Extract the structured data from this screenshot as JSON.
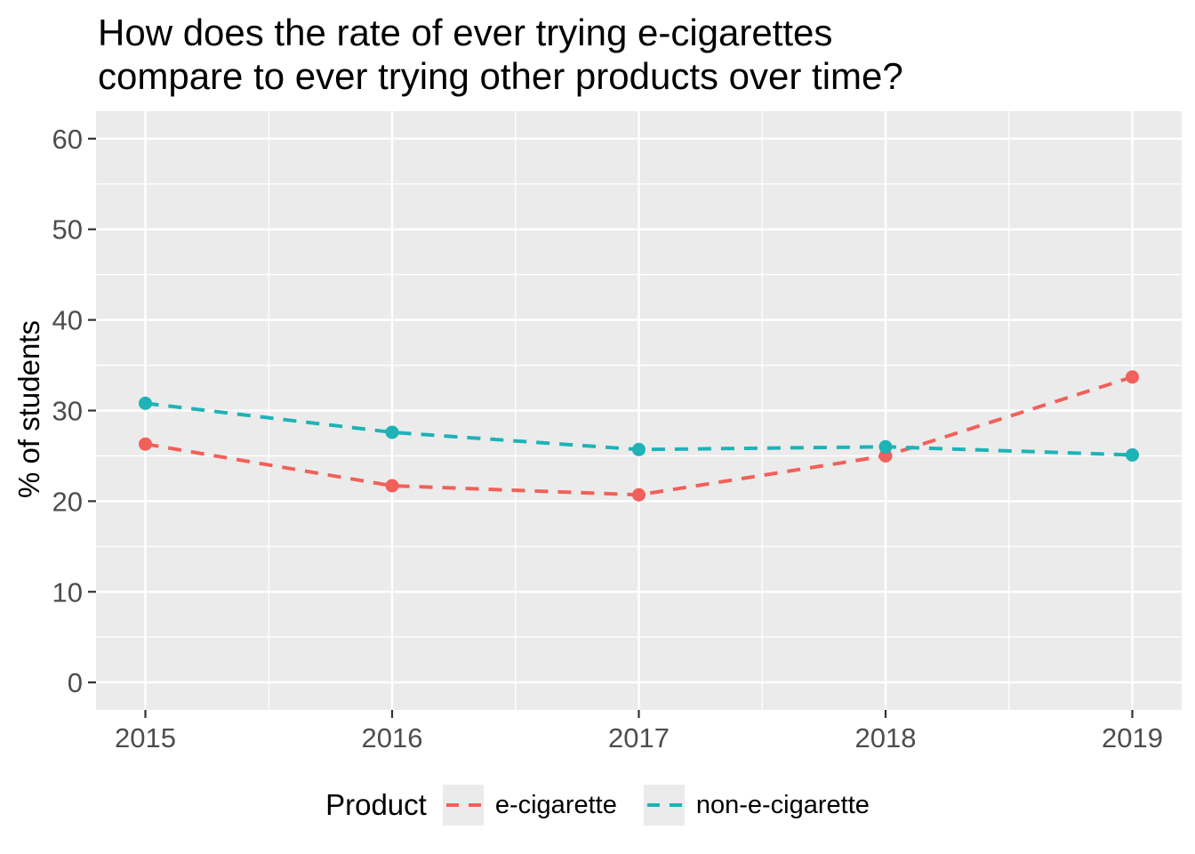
{
  "figure": {
    "title_lines": [
      "How does the rate of ever trying e-cigarettes",
      "compare to ever trying other products over time?"
    ]
  },
  "y_axis": {
    "title": "% of students",
    "tick_labels": [
      "0",
      "10",
      "20",
      "30",
      "40",
      "50",
      "60"
    ]
  },
  "x_axis": {
    "tick_labels": [
      "2015",
      "2016",
      "2017",
      "2018",
      "2019"
    ]
  },
  "legend": {
    "title": "Product",
    "entries": [
      {
        "label": "e-cigarette",
        "color": "#F1605A"
      },
      {
        "label": "non-e-cigarette",
        "color": "#1DB3B7"
      }
    ]
  },
  "colors": {
    "panel_background": "#EBEBEB",
    "gridline": "#FFFFFF",
    "tick_mark": "#333333",
    "tick_label": "#4D4D4D",
    "text": "#000000"
  },
  "chart_data": {
    "type": "line",
    "title": "How does the rate of ever trying e-cigarettes compare to ever trying other products over time?",
    "xlabel": "",
    "ylabel": "% of students",
    "x": [
      2015,
      2016,
      2017,
      2018,
      2019
    ],
    "series": [
      {
        "name": "e-cigarette",
        "color": "#F1605A",
        "linestyle": "dashed",
        "marker": "circle",
        "values": [
          26.3,
          21.7,
          20.7,
          25.0,
          33.7
        ]
      },
      {
        "name": "non-e-cigarette",
        "color": "#1DB3B7",
        "linestyle": "dashed",
        "marker": "circle",
        "values": [
          30.8,
          27.6,
          25.7,
          26.0,
          25.1
        ]
      }
    ],
    "xlim": [
      2015,
      2019
    ],
    "ylim": [
      0,
      60
    ],
    "yticks": [
      0,
      10,
      20,
      30,
      40,
      50,
      60
    ],
    "xticks": [
      2015,
      2016,
      2017,
      2018,
      2019
    ],
    "grid": true,
    "minor_grid": true,
    "legend_position": "bottom",
    "legend_title": "Product",
    "panel_style": "ggplot-gray"
  }
}
